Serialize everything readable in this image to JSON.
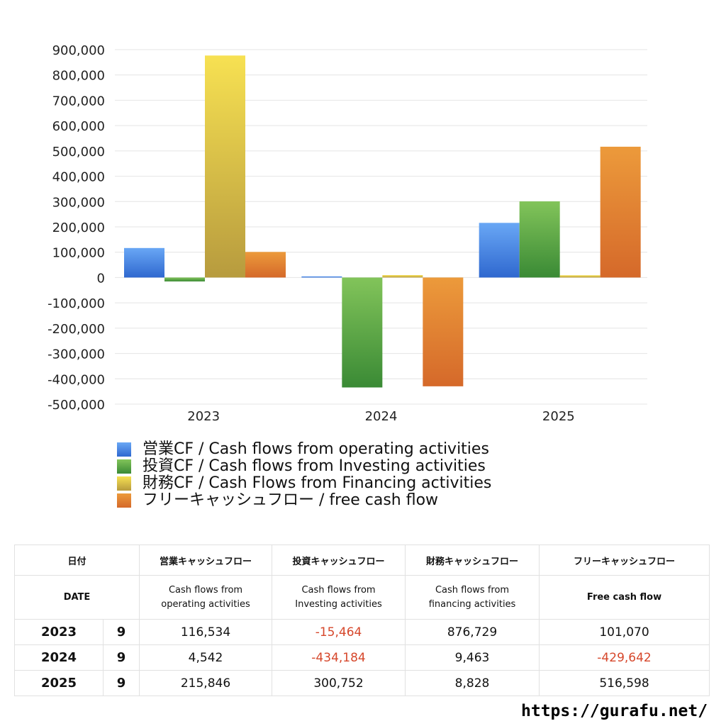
{
  "chart_data": {
    "type": "bar",
    "categories": [
      "2023",
      "2024",
      "2025"
    ],
    "series": [
      {
        "name": "営業CF / Cash flows from operating activities",
        "values": [
          116534,
          4542,
          215846
        ]
      },
      {
        "name": "投資CF / Cash flows from Investing activities",
        "values": [
          -15464,
          -434184,
          300752
        ]
      },
      {
        "name": "財務CF / Cash Flows from Financing activities",
        "values": [
          876729,
          9463,
          8828
        ]
      },
      {
        "name": "フリーキャッシュフロー / free cash flow",
        "values": [
          101070,
          -429642,
          516598
        ]
      }
    ],
    "ylim": [
      -500000,
      900000
    ],
    "yticks": [
      "900,000",
      "800,000",
      "700,000",
      "600,000",
      "500,000",
      "400,000",
      "300,000",
      "200,000",
      "100,000",
      "0",
      "-100,000",
      "-200,000",
      "-300,000",
      "-400,000",
      "-500,000"
    ],
    "ytick_values": [
      900000,
      800000,
      700000,
      600000,
      500000,
      400000,
      300000,
      200000,
      100000,
      0,
      -100000,
      -200000,
      -300000,
      -400000,
      -500000
    ],
    "grid": true,
    "legend_position": "bottom-left",
    "colors": [
      [
        "#69a7f5",
        "#2f68cf"
      ],
      [
        "#82c45a",
        "#3a8a35"
      ],
      [
        "#f7e152",
        "#b79b3e"
      ],
      [
        "#ec9a3b",
        "#d5692a"
      ]
    ]
  },
  "table": {
    "headers_jp": [
      "日付",
      "営業キャッシュフロー",
      "投資キャッシュフロー",
      "財務キャッシュフロー",
      "フリーキャッシュフロー"
    ],
    "headers_en": {
      "date": "DATE",
      "operating": [
        "Cash flows from",
        "operating activities"
      ],
      "investing": [
        "Cash flows from",
        "Investing activities"
      ],
      "financing": [
        "Cash flows from",
        "financing activities"
      ],
      "free": "Free cash flow"
    },
    "rows": [
      {
        "year": "2023",
        "month": "9",
        "operating": "116,534",
        "investing": "-15,464",
        "financing": "876,729",
        "free": "101,070"
      },
      {
        "year": "2024",
        "month": "9",
        "operating": "4,542",
        "investing": "-434,184",
        "financing": "9,463",
        "free": "-429,642"
      },
      {
        "year": "2025",
        "month": "9",
        "operating": "215,846",
        "investing": "300,752",
        "financing": "8,828",
        "free": "516,598"
      }
    ]
  },
  "credit": "https://gurafu.net/"
}
